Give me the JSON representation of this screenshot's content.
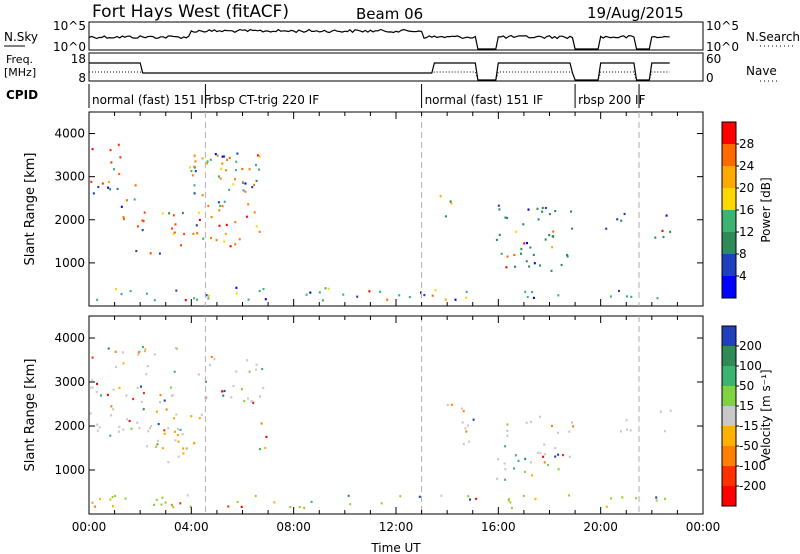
{
  "header": {
    "station": "Fort Hays West (fitACF)",
    "beam": "Beam 06",
    "date": "19/Aug/2015"
  },
  "strips": {
    "nsky": {
      "label": "N.Sky",
      "ticks": [
        "10^5",
        "10^0"
      ],
      "right_label": "N.Search",
      "right_ticks": [
        "10^5",
        "10^0"
      ]
    },
    "freq": {
      "label_line1": "Freq.",
      "label_line2": "[MHz]",
      "ticks": [
        "18",
        "8"
      ],
      "right_label": "Nave",
      "right_ticks": [
        "60",
        "0"
      ]
    },
    "cpid": {
      "label": "CPID",
      "segments": [
        {
          "label": "normal (fast) 151  IF",
          "start_h": 0.0
        },
        {
          "label": "rbsp CT-trig 220 IF",
          "start_h": 4.55
        },
        {
          "label": "normal (fast) 151 IF",
          "start_h": 13.0
        },
        {
          "label": "rbsp 200 IF",
          "start_h": 19.0
        },
        {
          "label": "",
          "start_h": 21.5
        }
      ]
    }
  },
  "chart_data": [
    {
      "type": "heatmap",
      "ylabel": "Slant Range [km]",
      "xlabel": "",
      "xlim": [
        "00:00",
        "24:00"
      ],
      "ylim": [
        0,
        4500
      ],
      "yticks": [
        1000,
        2000,
        3000,
        4000
      ],
      "colorbar": {
        "label": "Power [dB]",
        "ticks": [
          "28",
          "24",
          "20",
          "16",
          "12",
          "8",
          "4"
        ],
        "colors": [
          "#ff0000",
          "#ff6a00",
          "#ffaa00",
          "#ffd700",
          "#3cb371",
          "#2e8b57",
          "#1f3fbf",
          "#0000ff"
        ]
      },
      "regions": [
        {
          "t0": 0.0,
          "t1": 1.2,
          "r0": 2300,
          "r1": 3800,
          "color": "#ff3300"
        },
        {
          "t0": 1.2,
          "t1": 1.9,
          "r0": 2000,
          "r1": 3000,
          "color": "#ff6a00"
        },
        {
          "t0": 1.8,
          "t1": 4.0,
          "r0": 1200,
          "r1": 2200,
          "color": "#ff4500"
        },
        {
          "t0": 4.0,
          "t1": 6.8,
          "r0": 1400,
          "r1": 3600,
          "color": "#ff7f00"
        },
        {
          "t0": 3.5,
          "t1": 7.0,
          "r0": 2700,
          "r1": 3500,
          "color": "#3cb371"
        },
        {
          "t0": 13.7,
          "t1": 14.3,
          "r0": 1900,
          "r1": 2600,
          "color": "#ffaa00"
        },
        {
          "t0": 15.9,
          "t1": 18.9,
          "r0": 800,
          "r1": 2400,
          "color": "#2e8b57"
        },
        {
          "t0": 16.0,
          "t1": 17.0,
          "r0": 900,
          "r1": 1300,
          "color": "#ff6a00"
        },
        {
          "t0": 20.0,
          "t1": 21.3,
          "r0": 1800,
          "r1": 2200,
          "color": "#1f3fbf"
        },
        {
          "t0": 22.0,
          "t1": 22.8,
          "r0": 1600,
          "r1": 2400,
          "color": "#2e8b57"
        },
        {
          "t0": 0.0,
          "t1": 22.8,
          "r0": 150,
          "r1": 450,
          "color": "#3cb371"
        }
      ]
    },
    {
      "type": "heatmap",
      "ylabel": "Slant Range [km]",
      "xlabel": "Time UT",
      "xlim": [
        "00:00",
        "24:00"
      ],
      "ylim": [
        0,
        4500
      ],
      "yticks": [
        1000,
        2000,
        3000,
        4000
      ],
      "xticks": [
        "00:00",
        "04:00",
        "08:00",
        "12:00",
        "16:00",
        "20:00",
        "00:00"
      ],
      "colorbar": {
        "label": "Velocity [m s⁻¹]",
        "ticks": [
          "200",
          "100",
          "50",
          "15",
          "-15",
          "-50",
          "-100",
          "-200"
        ],
        "colors": [
          "#1f3fbf",
          "#2e8b57",
          "#3cb371",
          "#7fd33f",
          "#c8c8c8",
          "#ffb000",
          "#ff8000",
          "#ff3000",
          "#ff0000"
        ]
      },
      "regions": [
        {
          "t0": 0.0,
          "t1": 3.5,
          "r0": 1800,
          "r1": 3900,
          "color": "#c8c8c8"
        },
        {
          "t0": 1.8,
          "t1": 3.8,
          "r0": 1200,
          "r1": 2000,
          "color": "#c8c8c8"
        },
        {
          "t0": 2.5,
          "t1": 4.5,
          "r0": 1500,
          "r1": 2400,
          "color": "#ffa500"
        },
        {
          "t0": 4.0,
          "t1": 6.8,
          "r0": 2500,
          "r1": 3600,
          "color": "#c8c8c8"
        },
        {
          "t0": 6.3,
          "t1": 7.0,
          "r0": 1500,
          "r1": 2200,
          "color": "#ff0000"
        },
        {
          "t0": 13.7,
          "t1": 15.0,
          "r0": 1600,
          "r1": 2600,
          "color": "#c8c8c8"
        },
        {
          "t0": 15.9,
          "t1": 18.9,
          "r0": 800,
          "r1": 2300,
          "color": "#c8c8c8"
        },
        {
          "t0": 20.0,
          "t1": 21.3,
          "r0": 1800,
          "r1": 2200,
          "color": "#c8c8c8"
        },
        {
          "t0": 22.0,
          "t1": 22.8,
          "r0": 1900,
          "r1": 2400,
          "color": "#c8c8c8"
        },
        {
          "t0": 0.0,
          "t1": 22.8,
          "r0": 150,
          "r1": 450,
          "color": "#9acd32"
        }
      ]
    }
  ]
}
